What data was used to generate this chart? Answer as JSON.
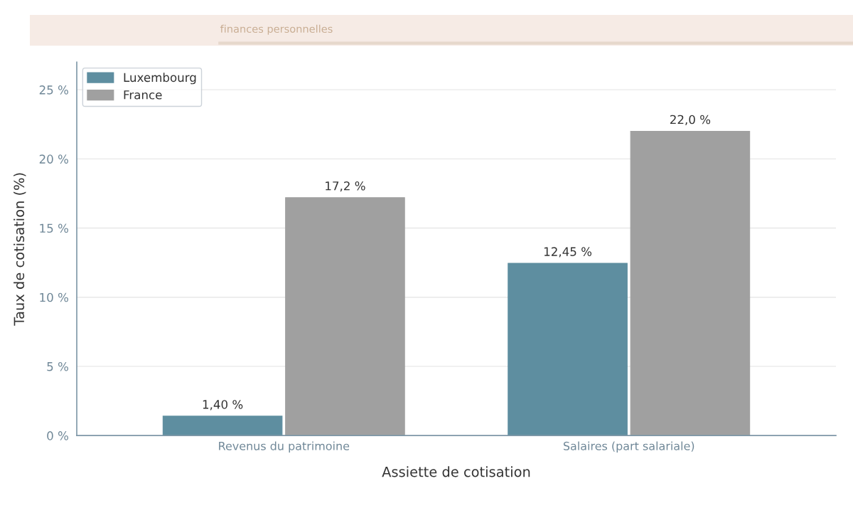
{
  "chart_data": {
    "type": "bar",
    "annotations": [
      "finances personnelles"
    ],
    "xlabel": "Assiette de cotisation",
    "ylabel": "Taux de cotisation (%)",
    "categories": [
      "Revenus du patrimoine",
      "Salaires (part salariale)"
    ],
    "series": [
      {
        "name": "Luxembourg",
        "color": "#5e8ea0",
        "values": [
          1.4,
          12.45
        ],
        "value_labels": [
          "1,40 %",
          "12,45 %"
        ]
      },
      {
        "name": "France",
        "color": "#a0a0a0",
        "values": [
          17.2,
          22.0
        ],
        "value_labels": [
          "17,2 %",
          "22,0 %"
        ]
      }
    ],
    "ylim": [
      0,
      27
    ],
    "yticks": [
      {
        "value": 0,
        "label": "0 %"
      },
      {
        "value": 5,
        "label": "5 %"
      },
      {
        "value": 10,
        "label": "10 %"
      },
      {
        "value": 15,
        "label": "15 %"
      },
      {
        "value": 20,
        "label": "20 %"
      },
      {
        "value": 25,
        "label": "25 %"
      }
    ],
    "grid": "y",
    "legend": "top left"
  }
}
